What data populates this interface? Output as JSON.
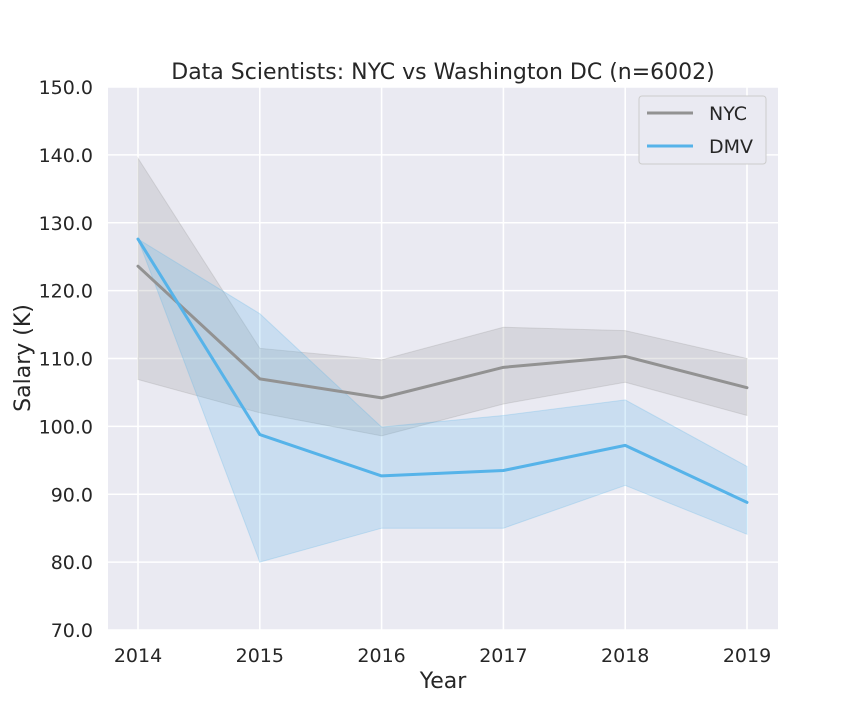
{
  "chart_data": {
    "type": "line",
    "title": "Data Scientists: NYC vs Washington DC (n=6002)",
    "xlabel": "Year",
    "ylabel": "Salary (K)",
    "x": [
      2014,
      2015,
      2016,
      2017,
      2018,
      2019
    ],
    "x_tick_labels": [
      "2014",
      "2015",
      "2016",
      "2017",
      "2018",
      "2019"
    ],
    "ylim": [
      70,
      150
    ],
    "y_ticks": [
      70,
      80,
      90,
      100,
      110,
      120,
      130,
      140,
      150
    ],
    "y_tick_labels": [
      "70.0",
      "80.0",
      "90.0",
      "100.0",
      "110.0",
      "120.0",
      "130.0",
      "140.0",
      "150.0"
    ],
    "grid": true,
    "legend_position": "top-right",
    "series": [
      {
        "name": "NYC",
        "color": "#929292",
        "values": [
          123.6,
          107.0,
          104.2,
          108.7,
          110.3,
          105.7
        ],
        "ci_lower": [
          106.9,
          102.0,
          98.6,
          103.3,
          106.5,
          101.6
        ],
        "ci_upper": [
          139.5,
          111.5,
          109.8,
          114.6,
          114.1,
          110.0
        ]
      },
      {
        "name": "DMV",
        "color": "#56b3e9",
        "values": [
          127.6,
          98.8,
          92.7,
          93.5,
          97.2,
          88.8
        ],
        "ci_lower": [
          127.6,
          80.0,
          85.0,
          85.0,
          91.3,
          84.1
        ],
        "ci_upper": [
          127.6,
          116.6,
          99.9,
          101.6,
          103.9,
          94.1
        ]
      }
    ]
  }
}
